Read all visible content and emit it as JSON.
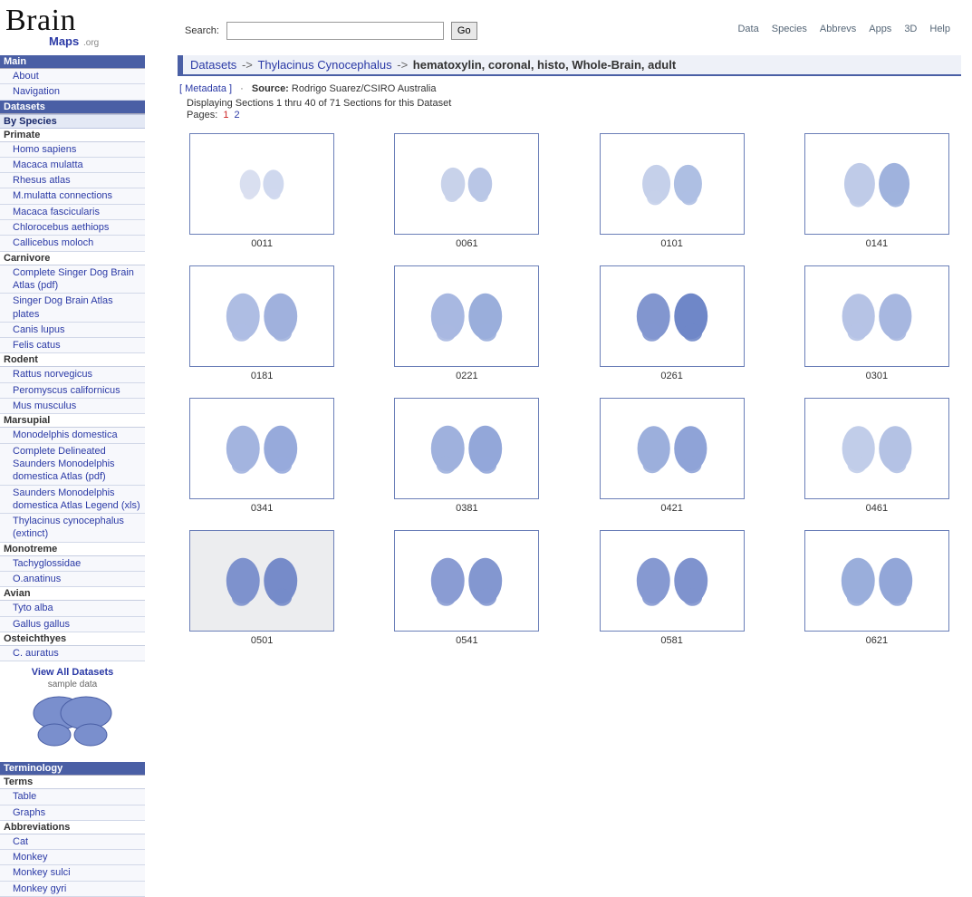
{
  "logo": {
    "main": "Brain",
    "sub": "Maps",
    "org": " .org"
  },
  "search": {
    "label": "Search:",
    "go": "Go"
  },
  "topnav": [
    "Data",
    "Species",
    "Abbrevs",
    "Apps",
    "3D",
    "Help"
  ],
  "sidebar": {
    "main": {
      "head": "Main",
      "items": [
        "About",
        "Navigation"
      ]
    },
    "datasets_head": "Datasets",
    "by_species": "By Species",
    "groups": [
      {
        "cat": "Primate",
        "items": [
          "Homo sapiens",
          "Macaca mulatta",
          "Rhesus atlas",
          "M.mulatta connections",
          "Macaca fascicularis",
          "Chlorocebus aethiops",
          "Callicebus moloch"
        ]
      },
      {
        "cat": "Carnivore",
        "items": [
          "Complete Singer Dog Brain Atlas (pdf)",
          "Singer Dog Brain Atlas plates",
          "Canis lupus",
          "Felis catus"
        ]
      },
      {
        "cat": "Rodent",
        "items": [
          "Rattus norvegicus",
          "Peromyscus californicus",
          "Mus musculus"
        ]
      },
      {
        "cat": "Marsupial",
        "items": [
          "Monodelphis domestica",
          "Complete Delineated Saunders Monodelphis domestica Atlas (pdf)",
          "Saunders Monodelphis domestica Atlas Legend (xls)",
          "Thylacinus cynocephalus (extinct)"
        ]
      },
      {
        "cat": "Monotreme",
        "items": [
          "Tachyglossidae",
          "O.anatinus"
        ]
      },
      {
        "cat": "Avian",
        "items": [
          "Tyto alba",
          "Gallus gallus"
        ]
      },
      {
        "cat": "Osteichthyes",
        "items": [
          "C. auratus"
        ]
      }
    ],
    "view_all": "View All Datasets",
    "sample": "sample data",
    "terminology": {
      "head": "Terminology",
      "terms": {
        "cat": "Terms",
        "items": [
          "Table",
          "Graphs"
        ]
      },
      "abbrev": {
        "cat": "Abbreviations",
        "items": [
          "Cat",
          "Monkey",
          "Monkey sulci",
          "Monkey gyri"
        ]
      }
    }
  },
  "breadcrumb": {
    "a": "Datasets",
    "sep": " -> ",
    "b": "Thylacinus Cynocephalus",
    "trail": "hematoxylin, coronal, histo, Whole-Brain, adult"
  },
  "meta": {
    "metadata_label": "[ Metadata ]",
    "source_label": "Source:",
    "source_value": "Rodrigo Suarez/CSIRO Australia"
  },
  "display_line": "Displaying Sections 1 thru 40 of 71 Sections for this Dataset",
  "pages_label": "Pages:",
  "pages": [
    "1",
    "2"
  ],
  "current_page": "1",
  "thumbs": [
    {
      "id": "0011",
      "fillL": "#d9dff0",
      "fillR": "#cfd8ee",
      "scale": 0.62,
      "bg": "#ffffff"
    },
    {
      "id": "0061",
      "fillL": "#c8d2ea",
      "fillR": "#b9c6e6",
      "scale": 0.72,
      "bg": "#ffffff"
    },
    {
      "id": "0101",
      "fillL": "#c5d0ea",
      "fillR": "#aebfe3",
      "scale": 0.84,
      "bg": "#ffffff"
    },
    {
      "id": "0141",
      "fillL": "#bfcbe8",
      "fillR": "#9fb2dd",
      "scale": 0.92,
      "bg": "#ffffff"
    },
    {
      "id": "0181",
      "fillL": "#aebde3",
      "fillR": "#a0b1dd",
      "scale": 1.0,
      "bg": "#ffffff"
    },
    {
      "id": "0221",
      "fillL": "#a8b8e1",
      "fillR": "#9aaedb",
      "scale": 1.0,
      "bg": "#ffffff"
    },
    {
      "id": "0261",
      "fillL": "#8296cf",
      "fillR": "#6f87c8",
      "scale": 1.0,
      "bg": "#ffffff"
    },
    {
      "id": "0301",
      "fillL": "#b6c3e5",
      "fillR": "#a7b7e0",
      "scale": 0.98,
      "bg": "#ffffff"
    },
    {
      "id": "0341",
      "fillL": "#a3b4df",
      "fillR": "#97aadb",
      "scale": 1.0,
      "bg": "#ffffff"
    },
    {
      "id": "0381",
      "fillL": "#9fb1dd",
      "fillR": "#93a7d9",
      "scale": 1.0,
      "bg": "#ffffff"
    },
    {
      "id": "0421",
      "fillL": "#9cafdc",
      "fillR": "#8fa3d7",
      "scale": 0.98,
      "bg": "#ffffff"
    },
    {
      "id": "0461",
      "fillL": "#c1cde9",
      "fillR": "#b4c2e4",
      "scale": 0.98,
      "bg": "#ffffff"
    },
    {
      "id": "0501",
      "fillL": "#7e92cd",
      "fillR": "#768bc9",
      "scale": 1.0,
      "bg": "#ecedef"
    },
    {
      "id": "0541",
      "fillL": "#8a9cd3",
      "fillR": "#8397d0",
      "scale": 1.0,
      "bg": "#ffffff"
    },
    {
      "id": "0581",
      "fillL": "#8699d1",
      "fillR": "#7f93ce",
      "scale": 1.0,
      "bg": "#ffffff"
    },
    {
      "id": "0621",
      "fillL": "#9aaedb",
      "fillR": "#92a6d8",
      "scale": 1.0,
      "bg": "#ffffff"
    }
  ],
  "colors": {
    "accent": "#4a5fa5",
    "link": "#2b3aa6",
    "thumb_border": "#6b7fb8"
  }
}
